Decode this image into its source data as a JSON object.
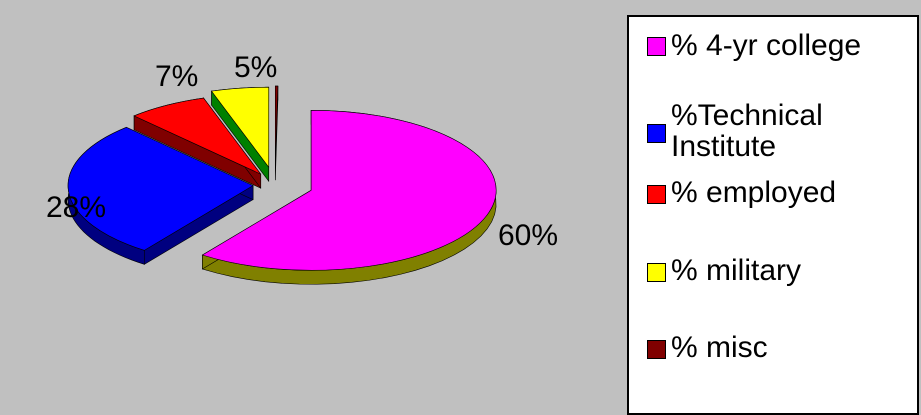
{
  "chart_data": {
    "type": "pie",
    "three_d": true,
    "exploded": true,
    "legend_position": "right",
    "categories": [
      "% 4-yr college",
      "%Technical Institute",
      "% employed",
      "% military",
      "% misc"
    ],
    "values": [
      60,
      28,
      7,
      5,
      0
    ],
    "data_labels": [
      "60%",
      "28%",
      "7%",
      "5%",
      ""
    ],
    "colors": {
      "% 4-yr college": "#ff00ff",
      "%Technical Institute": "#0000ff",
      "% employed": "#ff0000",
      "% military": "#ffff00",
      "% misc": "#800000"
    },
    "side_colors": {
      "% 4-yr college": "#808000",
      "%Technical Institute": "#000080",
      "% employed": "#800000",
      "% military": "#008000",
      "% misc": "#400000"
    },
    "background": "#c0c0c0"
  },
  "legend": {
    "items": [
      {
        "label": "% 4-yr college",
        "color": "#ff00ff"
      },
      {
        "label": "%Technical Institute",
        "color": "#0000ff"
      },
      {
        "label": "% employed",
        "color": "#ff0000"
      },
      {
        "label": "% military",
        "color": "#ffff00"
      },
      {
        "label": "% misc",
        "color": "#800000"
      }
    ]
  }
}
